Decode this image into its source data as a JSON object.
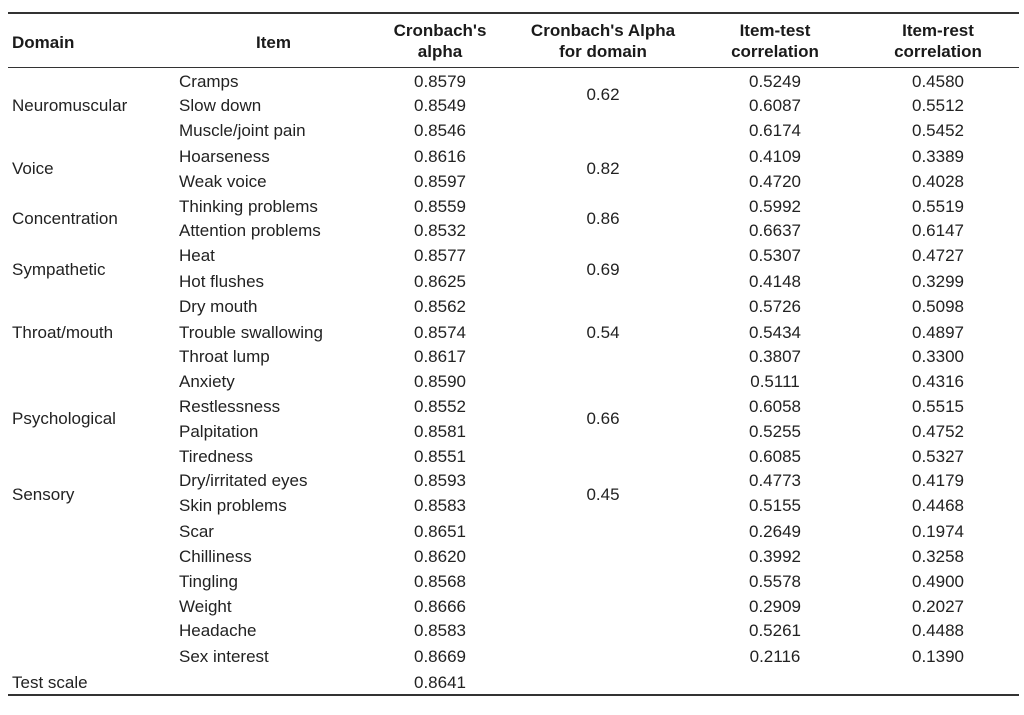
{
  "headers": {
    "domain": "Domain",
    "item": "Item",
    "alpha_l1": "Cronbach's",
    "alpha_l2": "alpha",
    "domain_alpha_l1": "Cronbach's Alpha",
    "domain_alpha_l2": "for domain",
    "item_test_l1": "Item-test",
    "item_test_l2": "correlation",
    "item_rest_l1": "Item-rest",
    "item_rest_l2": "correlation"
  },
  "domains": [
    {
      "label": "Neuromuscular",
      "alpha": "0.62"
    },
    {
      "label": "Voice",
      "alpha": "0.82"
    },
    {
      "label": "Concentration",
      "alpha": "0.86"
    },
    {
      "label": "Sympathetic",
      "alpha": "0.69"
    },
    {
      "label": "Throat/mouth",
      "alpha": "0.54"
    },
    {
      "label": "Psychological",
      "alpha": "0.66"
    },
    {
      "label": "Sensory",
      "alpha": "0.45"
    },
    {
      "label": "Test scale",
      "alpha": ""
    }
  ],
  "rows": [
    {
      "item": "Cramps",
      "alpha": "0.8579",
      "item_test": "0.5249",
      "item_rest": "0.4580"
    },
    {
      "item": "Slow down",
      "alpha": "0.8549",
      "item_test": "0.6087",
      "item_rest": "0.5512"
    },
    {
      "item": "Muscle/joint pain",
      "alpha": "0.8546",
      "item_test": "0.6174",
      "item_rest": "0.5452"
    },
    {
      "item": "Hoarseness",
      "alpha": "0.8616",
      "item_test": "0.4109",
      "item_rest": "0.3389"
    },
    {
      "item": "Weak voice",
      "alpha": "0.8597",
      "item_test": "0.4720",
      "item_rest": "0.4028"
    },
    {
      "item": "Thinking problems",
      "alpha": "0.8559",
      "item_test": "0.5992",
      "item_rest": "0.5519"
    },
    {
      "item": "Attention problems",
      "alpha": "0.8532",
      "item_test": "0.6637",
      "item_rest": "0.6147"
    },
    {
      "item": "Heat",
      "alpha": "0.8577",
      "item_test": "0.5307",
      "item_rest": "0.4727"
    },
    {
      "item": "Hot flushes",
      "alpha": "0.8625",
      "item_test": "0.4148",
      "item_rest": "0.3299"
    },
    {
      "item": "Dry mouth",
      "alpha": "0.8562",
      "item_test": "0.5726",
      "item_rest": "0.5098"
    },
    {
      "item": "Trouble swallowing",
      "alpha": "0.8574",
      "item_test": "0.5434",
      "item_rest": "0.4897"
    },
    {
      "item": "Throat lump",
      "alpha": "0.8617",
      "item_test": "0.3807",
      "item_rest": "0.3300"
    },
    {
      "item": "Anxiety",
      "alpha": "0.8590",
      "item_test": "0.5111",
      "item_rest": "0.4316"
    },
    {
      "item": "Restlessness",
      "alpha": "0.8552",
      "item_test": "0.6058",
      "item_rest": "0.5515"
    },
    {
      "item": "Palpitation",
      "alpha": "0.8581",
      "item_test": "0.5255",
      "item_rest": "0.4752"
    },
    {
      "item": "Tiredness",
      "alpha": "0.8551",
      "item_test": "0.6085",
      "item_rest": "0.5327"
    },
    {
      "item": "Dry/irritated eyes",
      "alpha": "0.8593",
      "item_test": "0.4773",
      "item_rest": "0.4179"
    },
    {
      "item": "Skin problems",
      "alpha": "0.8583",
      "item_test": "0.5155",
      "item_rest": "0.4468"
    },
    {
      "item": "Scar",
      "alpha": "0.8651",
      "item_test": "0.2649",
      "item_rest": "0.1974"
    },
    {
      "item": "Chilliness",
      "alpha": "0.8620",
      "item_test": "0.3992",
      "item_rest": "0.3258"
    },
    {
      "item": "Tingling",
      "alpha": "0.8568",
      "item_test": "0.5578",
      "item_rest": "0.4900"
    },
    {
      "item": "Weight",
      "alpha": "0.8666",
      "item_test": "0.2909",
      "item_rest": "0.2027"
    },
    {
      "item": "Headache",
      "alpha": "0.8583",
      "item_test": "0.5261",
      "item_rest": "0.4488"
    },
    {
      "item": "Sex interest",
      "alpha": "0.8669",
      "item_test": "0.2116",
      "item_rest": "0.1390"
    },
    {
      "item": "",
      "alpha": "0.8641",
      "item_test": "",
      "item_rest": ""
    }
  ]
}
